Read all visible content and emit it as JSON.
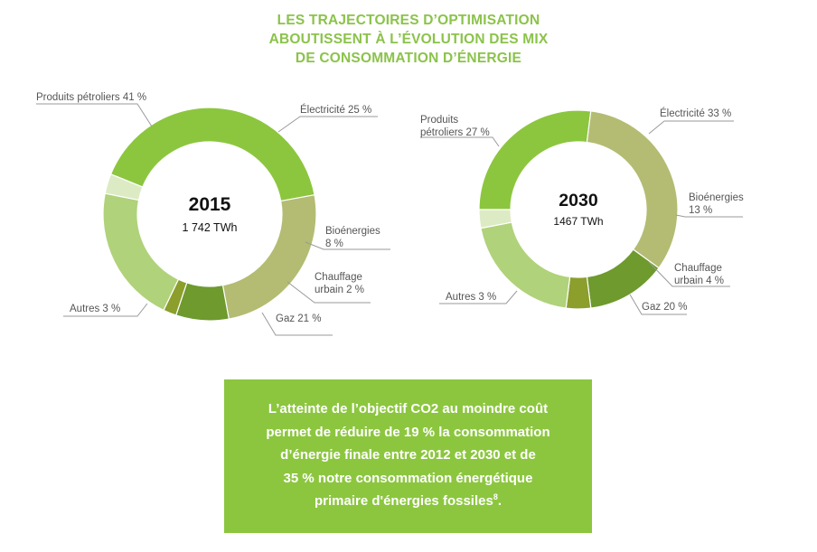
{
  "title_lines": [
    "LES TRAJECTOIRES D’OPTIMISATION",
    "ABOUTISSENT À L’ÉVOLUTION DES MIX",
    "DE CONSOMMATION D’ÉNERGIE"
  ],
  "chart_data": [
    {
      "type": "pie",
      "variant": "donut",
      "center_label": "2015",
      "center_sublabel": "1 742 TWh",
      "slices": [
        {
          "label": "Produits pétroliers 41 %",
          "value": 41,
          "color": "#8cc63f"
        },
        {
          "label": "Électricité 25 %",
          "value": 25,
          "color": "#b3bc72"
        },
        {
          "label": "Bioénergies 8 %",
          "value": 8,
          "color": "#6e9a2e"
        },
        {
          "label": "Chauffage urbain 2 %",
          "value": 2,
          "color": "#8c9e2c"
        },
        {
          "label": "Gaz 21 %",
          "value": 21,
          "color": "#b0d27a"
        },
        {
          "label": "Autres 3 %",
          "value": 3,
          "color": "#dcebc4"
        }
      ]
    },
    {
      "type": "pie",
      "variant": "donut",
      "center_label": "2030",
      "center_sublabel": "1467 TWh",
      "slices": [
        {
          "label": "Produits pétroliers 27 %",
          "value": 27,
          "color": "#8cc63f"
        },
        {
          "label": "Électricité 33 %",
          "value": 33,
          "color": "#b3bc72"
        },
        {
          "label": "Bioénergies 13 %",
          "value": 13,
          "color": "#6e9a2e"
        },
        {
          "label": "Chauffage urbain 4 %",
          "value": 4,
          "color": "#8c9e2c"
        },
        {
          "label": "Gaz 20 %",
          "value": 20,
          "color": "#b0d27a"
        },
        {
          "label": "Autres 3 %",
          "value": 3,
          "color": "#dcebc4"
        }
      ]
    }
  ],
  "callout_lines": [
    "L’atteinte de l’objectif CO2 au moindre coût",
    "permet de réduire de 19 % la consommation",
    "d’énergie finale entre 2012 et 2030 et de",
    "35 % notre consommation énergétique",
    "primaire d'énergies fossiles"
  ],
  "callout_footnote": "8",
  "callout_end": ".",
  "colors": {
    "accent": "#8cc63f",
    "title": "#8bc34a",
    "leader_line": "#9a9a9a",
    "label_text": "#555555"
  }
}
